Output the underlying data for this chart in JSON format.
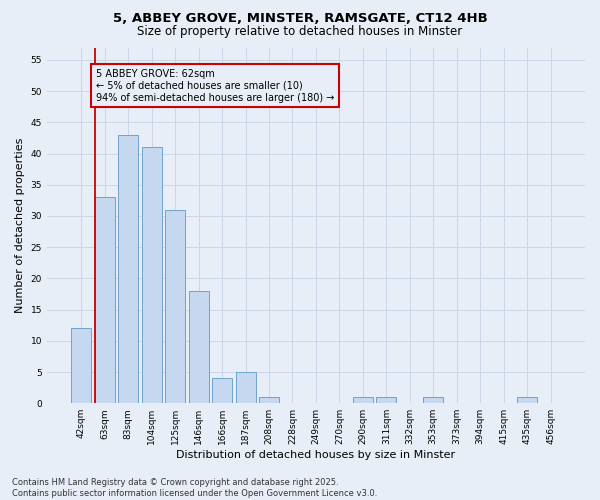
{
  "title1": "5, ABBEY GROVE, MINSTER, RAMSGATE, CT12 4HB",
  "title2": "Size of property relative to detached houses in Minster",
  "xlabel": "Distribution of detached houses by size in Minster",
  "ylabel": "Number of detached properties",
  "categories": [
    "42sqm",
    "63sqm",
    "83sqm",
    "104sqm",
    "125sqm",
    "146sqm",
    "166sqm",
    "187sqm",
    "208sqm",
    "228sqm",
    "249sqm",
    "270sqm",
    "290sqm",
    "311sqm",
    "332sqm",
    "353sqm",
    "373sqm",
    "394sqm",
    "415sqm",
    "435sqm",
    "456sqm"
  ],
  "values": [
    12,
    33,
    43,
    41,
    31,
    18,
    4,
    5,
    1,
    0,
    0,
    0,
    1,
    1,
    0,
    1,
    0,
    0,
    0,
    1,
    0
  ],
  "bar_color": "#c5d8f0",
  "bar_edge_color": "#6ea4cc",
  "grid_color": "#ccd6e8",
  "background_color": "#e8eef8",
  "annotation_line1": "5 ABBEY GROVE: 62sqm",
  "annotation_line2": "← 5% of detached houses are smaller (10)",
  "annotation_line3": "94% of semi-detached houses are larger (180) →",
  "annotation_box_edge_color": "#cc0000",
  "vline_color": "#cc0000",
  "ylim": [
    0,
    57
  ],
  "yticks": [
    0,
    5,
    10,
    15,
    20,
    25,
    30,
    35,
    40,
    45,
    50,
    55
  ],
  "footer": "Contains HM Land Registry data © Crown copyright and database right 2025.\nContains public sector information licensed under the Open Government Licence v3.0.",
  "title_fontsize": 9.5,
  "subtitle_fontsize": 8.5,
  "tick_fontsize": 6.5,
  "ylabel_fontsize": 8,
  "xlabel_fontsize": 8,
  "annotation_fontsize": 7,
  "footer_fontsize": 6
}
